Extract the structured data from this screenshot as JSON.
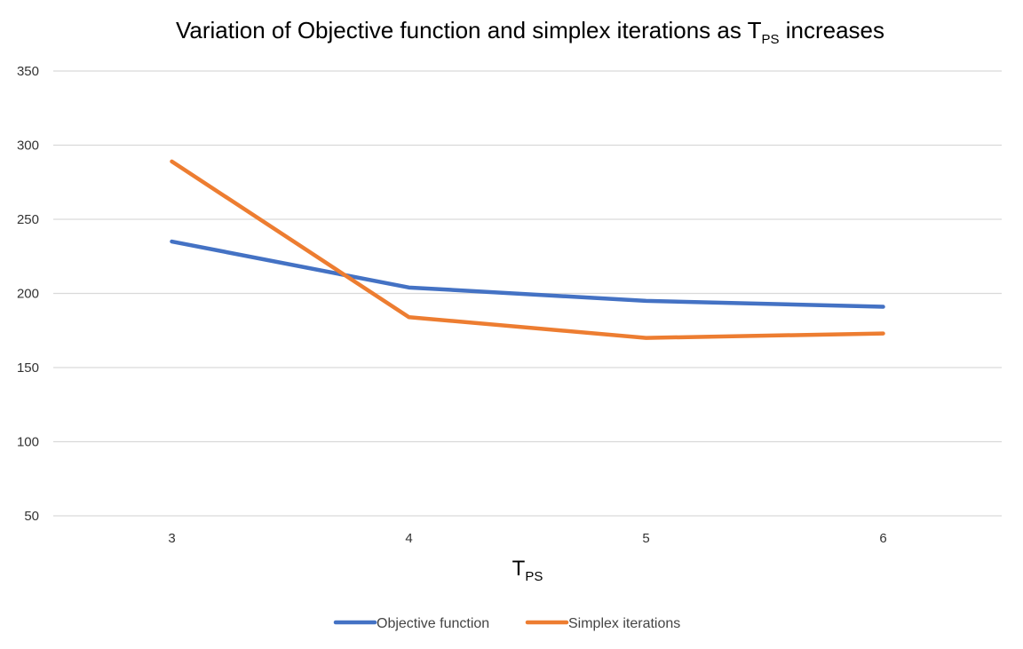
{
  "chart_data": {
    "type": "line",
    "title": {
      "main": "Variation of Objective function and simplex iterations as T",
      "subscript": "PS",
      "suffix": " increases"
    },
    "x": [
      "3",
      "4",
      "5",
      "6"
    ],
    "xlabel": {
      "main": "T",
      "subscript": "PS"
    },
    "ylabel": "",
    "ylim": [
      50,
      350
    ],
    "yticks": [
      50,
      100,
      150,
      200,
      250,
      300,
      350
    ],
    "grid": true,
    "legend_position": "bottom",
    "series": [
      {
        "name": "Objective function",
        "color": "#4472C4",
        "values": [
          235,
          204,
          195,
          191
        ]
      },
      {
        "name": "Simplex iterations",
        "color": "#ED7D31",
        "values": [
          289,
          184,
          170,
          173
        ]
      }
    ]
  }
}
